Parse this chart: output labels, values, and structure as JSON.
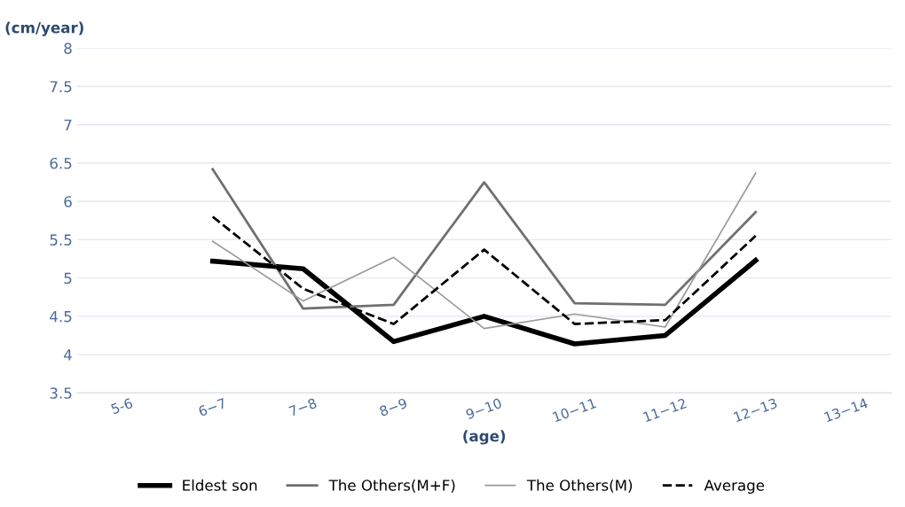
{
  "chart_data": {
    "type": "line",
    "ylabel": "(cm/year)",
    "xlabel": "(age)",
    "categories": [
      "5-6",
      "6−7",
      "7−8",
      "8−9",
      "9−10",
      "10−11",
      "11−12",
      "12−13",
      "13−14"
    ],
    "series": [
      {
        "name": "Eldest son",
        "color": "#000000",
        "values": [
          null,
          5.22,
          5.12,
          4.17,
          4.5,
          4.14,
          4.25,
          5.23,
          null
        ]
      },
      {
        "name": "The Others(M+F)",
        "color": "#707070",
        "values": [
          null,
          6.42,
          4.6,
          4.65,
          6.25,
          4.67,
          4.65,
          5.86,
          null
        ]
      },
      {
        "name": "The Others(M)",
        "color": "#9a9a9a",
        "values": [
          null,
          5.48,
          4.7,
          5.27,
          4.34,
          4.53,
          4.36,
          6.37,
          null
        ]
      },
      {
        "name": "Average",
        "color": "#000000",
        "line_style": "dashed",
        "values": [
          null,
          5.8,
          4.86,
          4.4,
          5.37,
          4.4,
          4.45,
          5.55,
          null
        ]
      }
    ],
    "ylim": [
      3.5,
      8
    ],
    "yticks": [
      3.5,
      4,
      4.5,
      5,
      5.5,
      6,
      6.5,
      7,
      7.5,
      8
    ],
    "grid": "y",
    "legend": "bottom",
    "marker": "none"
  }
}
